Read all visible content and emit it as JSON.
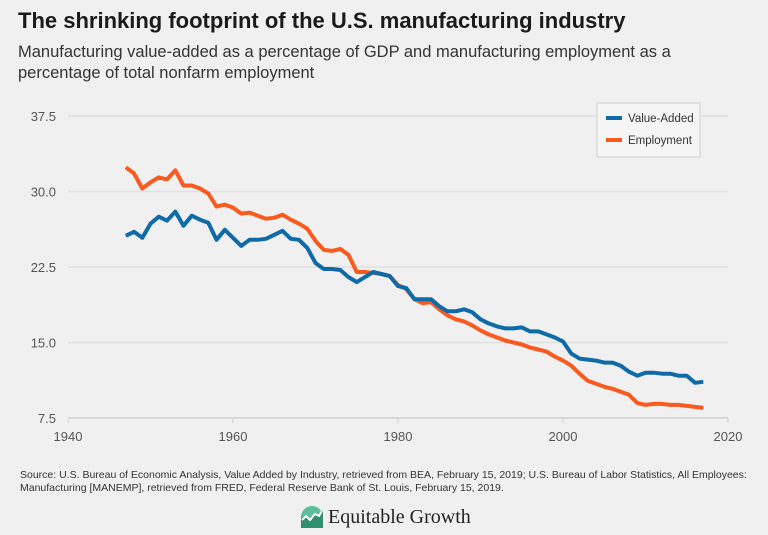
{
  "chart_data": {
    "type": "line",
    "title": "The shrinking footprint of the U.S. manufacturing industry",
    "subtitle": "Manufacturing value-added as a percentage of GDP and manufacturing employment as a percentage of total nonfarm employment",
    "xlabel": "",
    "ylabel": "",
    "xlim": [
      1940,
      2020
    ],
    "ylim": [
      7.5,
      37.5
    ],
    "xticks": [
      "1940",
      "1960",
      "1980",
      "2000",
      "2020"
    ],
    "yticks": [
      "7.5",
      "15.0",
      "22.5",
      "30.0",
      "37.5"
    ],
    "grid": "horizontal",
    "legend": "top-right",
    "x": [
      1947,
      1948,
      1949,
      1950,
      1951,
      1952,
      1953,
      1954,
      1955,
      1956,
      1957,
      1958,
      1959,
      1960,
      1961,
      1962,
      1963,
      1964,
      1965,
      1966,
      1967,
      1968,
      1969,
      1970,
      1971,
      1972,
      1973,
      1974,
      1975,
      1976,
      1977,
      1978,
      1979,
      1980,
      1981,
      1982,
      1983,
      1984,
      1985,
      1986,
      1987,
      1988,
      1989,
      1990,
      1991,
      1992,
      1993,
      1994,
      1995,
      1996,
      1997,
      1998,
      1999,
      2000,
      2001,
      2002,
      2003,
      2004,
      2005,
      2006,
      2007,
      2008,
      2009,
      2010,
      2011,
      2012,
      2013,
      2014,
      2015,
      2016,
      2017
    ],
    "series": [
      {
        "name": "Value-Added",
        "color": "#0f6aa8",
        "values": [
          25.6,
          26.0,
          25.4,
          26.8,
          27.5,
          27.1,
          28.0,
          26.6,
          27.6,
          27.2,
          26.9,
          25.2,
          26.2,
          25.4,
          24.6,
          25.2,
          25.2,
          25.3,
          25.7,
          26.1,
          25.3,
          25.2,
          24.4,
          22.9,
          22.3,
          22.3,
          22.2,
          21.5,
          21.0,
          21.5,
          22.0,
          21.8,
          21.6,
          20.6,
          20.4,
          19.3,
          19.3,
          19.3,
          18.6,
          18.1,
          18.1,
          18.3,
          18.0,
          17.3,
          16.9,
          16.6,
          16.4,
          16.4,
          16.5,
          16.1,
          16.1,
          15.8,
          15.5,
          15.1,
          13.9,
          13.4,
          13.3,
          13.2,
          13.0,
          13.0,
          12.7,
          12.1,
          11.7,
          12.0,
          12.0,
          11.9,
          11.9,
          11.7,
          11.7,
          11.0,
          11.1
        ]
      },
      {
        "name": "Employment",
        "color": "#fb5a1e",
        "values": [
          32.4,
          31.8,
          30.3,
          30.9,
          31.4,
          31.2,
          32.1,
          30.6,
          30.6,
          30.3,
          29.8,
          28.5,
          28.7,
          28.4,
          27.8,
          27.9,
          27.6,
          27.3,
          27.4,
          27.7,
          27.2,
          26.8,
          26.3,
          25.1,
          24.2,
          24.1,
          24.3,
          23.7,
          22.0,
          22.0,
          21.9,
          21.8,
          21.6,
          20.7,
          20.3,
          19.3,
          18.9,
          19.0,
          18.3,
          17.7,
          17.3,
          17.1,
          16.7,
          16.2,
          15.8,
          15.5,
          15.2,
          15.0,
          14.8,
          14.5,
          14.3,
          14.1,
          13.6,
          13.2,
          12.7,
          11.9,
          11.2,
          10.9,
          10.6,
          10.4,
          10.1,
          9.8,
          9.0,
          8.8,
          8.9,
          8.9,
          8.8,
          8.8,
          8.7,
          8.6,
          8.5
        ]
      }
    ]
  },
  "footer": {
    "source": "Source: U.S. Bureau of Economic Analysis, Value Added by Industry, retrieved from BEA, February 15, 2019; U.S. Bureau of Labor Statistics, All Employees: Manufacturing [MANEMP], retrieved from FRED, Federal Reserve Bank of St. Louis, February 15, 2019.",
    "logo_text": "Equitable Growth",
    "logo_color": "#5bbf9a"
  }
}
